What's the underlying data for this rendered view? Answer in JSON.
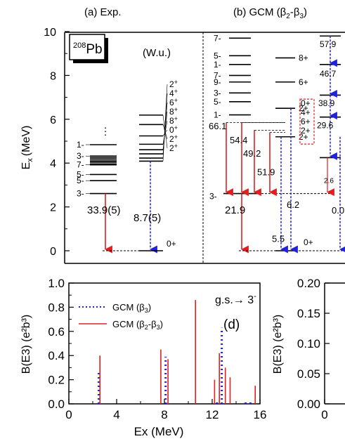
{
  "panel_a": {
    "label": "(a) Exp.",
    "nucleus_mass": "208",
    "nucleus_symbol": "Pb",
    "unit_note": "(W.u.)",
    "ylabel_main": "E",
    "ylabel_sub": "x",
    "ylabel_unit": "(MeV)",
    "y_ticks": [
      "0",
      "2",
      "4",
      "6",
      "8",
      "10"
    ],
    "ylim": [
      0,
      10
    ],
    "neg_levels": [
      {
        "e": 2.61,
        "label": "3-"
      },
      {
        "e": 3.2,
        "label": "5-"
      },
      {
        "e": 3.48,
        "label": "5-"
      },
      {
        "e": 3.92,
        "label": "7-"
      },
      {
        "e": 3.96,
        "label": ""
      },
      {
        "e": 4.04,
        "label": ""
      },
      {
        "e": 4.1,
        "label": ""
      },
      {
        "e": 4.18,
        "label": ""
      },
      {
        "e": 4.25,
        "label": ""
      },
      {
        "e": 4.32,
        "label": "3-"
      },
      {
        "e": 4.84,
        "label": "1-"
      }
    ],
    "dots_mark": "⋮",
    "pos_levels": [
      {
        "e": 4.09,
        "label": "2+"
      },
      {
        "e": 4.23,
        "label": "4+"
      },
      {
        "e": 4.42,
        "label": "6+"
      },
      {
        "e": 4.61,
        "label": "8+"
      },
      {
        "e": 4.86,
        "label": "8+"
      },
      {
        "e": 5.24,
        "label": "0+"
      },
      {
        "e": 5.76,
        "label": "2+"
      },
      {
        "e": 6.19,
        "label": "2+"
      }
    ],
    "gs_label": "0+",
    "trans_red": "33.9(5)",
    "trans_blue": "8.7(5)"
  },
  "panel_b": {
    "label_prefix": "(b) GCM (β",
    "label_sub1": "2",
    "label_mid": "-β",
    "label_sub2": "3",
    "label_suffix": ")",
    "neg_levels": [
      {
        "e": 6.2,
        "label": "1-"
      },
      {
        "e": 6.8,
        "label": "5-"
      },
      {
        "e": 7.2,
        "label": "3-"
      },
      {
        "e": 7.7,
        "label": "9-"
      },
      {
        "e": 8.0,
        "label": "7-"
      },
      {
        "e": 8.5,
        "label": "1-"
      },
      {
        "e": 8.9,
        "label": "5-"
      },
      {
        "e": 9.7,
        "label": "7-"
      }
    ],
    "neg_band": {
      "e": 2.61,
      "label": "3-"
    },
    "gsb_levels": [
      {
        "e": 0,
        "label": "0+"
      },
      {
        "e": 5.2,
        "label": "2+"
      },
      {
        "e": 6.5,
        "label": "2+"
      },
      {
        "e": 7.7,
        "label": "6+"
      },
      {
        "e": 8.8,
        "label": "8+"
      }
    ],
    "side_levels": [
      {
        "e": 4.25,
        "label": ""
      },
      {
        "e": 6.1,
        "label": ""
      },
      {
        "e": 7.1,
        "label": ""
      },
      {
        "e": 8.5,
        "label": ""
      },
      {
        "e": 9.8,
        "label": ""
      }
    ],
    "box_labels": [
      "0+",
      "4+",
      "6+",
      "2+"
    ],
    "red_values": [
      "66.1",
      "54.4",
      "49.2",
      "51.9"
    ],
    "value_21": "21.9",
    "blue_values": [
      "5.5",
      "6.2",
      "0.0"
    ],
    "side_values": [
      "57.9",
      "46.7",
      "38.9",
      "29.6",
      "2.6"
    ]
  },
  "panel_d": {
    "ylabel": "B(E3) (e²b³)",
    "xlabel": "Ex (MeV)",
    "x_ticks": [
      "0",
      "4",
      "8",
      "12",
      "16"
    ],
    "y_ticks": [
      "0.0",
      "0.2",
      "0.4",
      "0.6",
      "0.8",
      "1.0"
    ],
    "annotation": "g.s.→ 3",
    "annotation_sup": "-",
    "tag": "(d)",
    "legend_blue_prefix": "GCM (β",
    "legend_blue_sub": "3",
    "legend_blue_suffix": ")",
    "legend_red_prefix": "GCM (β",
    "legend_red_sub1": "2",
    "legend_red_mid": "-β",
    "legend_red_sub2": "3",
    "legend_red_suffix": ")"
  },
  "panel_e": {
    "ylabel": "B(E3) (e²b³)",
    "y_ticks": [
      "0.00",
      "0.05",
      "0.10",
      "0.15",
      "0.20"
    ],
    "x_ticks": [
      "0"
    ]
  },
  "chart_data": [
    {
      "type": "bar",
      "title": "",
      "xlabel": "Ex (MeV)",
      "ylabel": "B(E3) (e²b³)",
      "xlim": [
        0,
        16
      ],
      "ylim": [
        0,
        1.0
      ],
      "legend": "top-left",
      "series": [
        {
          "name": "GCM (β3)",
          "style": "dotted",
          "color": "#2222dd",
          "x": [
            2.5,
            8.1,
            12.8
          ],
          "values": [
            0.26,
            0.39,
            0.63
          ]
        },
        {
          "name": "GCM (β2-β3)",
          "style": "solid",
          "color": "#e02020",
          "x": [
            2.6,
            7.7,
            8.3,
            10.6,
            12.2,
            12.6,
            13.1,
            13.5,
            15.6
          ],
          "values": [
            0.4,
            0.45,
            0.37,
            0.86,
            0.2,
            0.42,
            0.3,
            0.22,
            0.15
          ]
        }
      ]
    },
    {
      "type": "bar",
      "ylabel": "B(E3) (e²b³)",
      "ylim": [
        0,
        0.2
      ],
      "series": []
    }
  ],
  "colors": {
    "red": "#e02020",
    "blue": "#2222dd"
  }
}
